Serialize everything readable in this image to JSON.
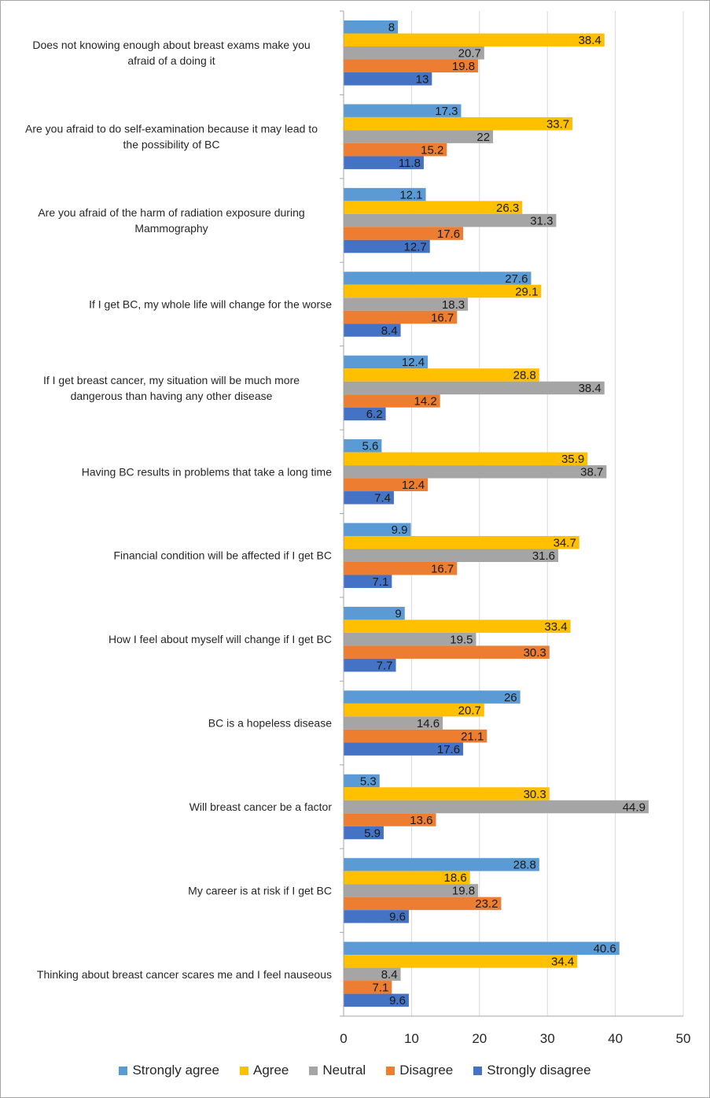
{
  "chart_data": {
    "type": "bar",
    "orientation": "horizontal",
    "categories": [
      "Does not knowing enough about breast exams make you afraid of a doing it",
      "Are you afraid to do self-examination because it may lead to the possibility of BC",
      "Are you afraid of the harm of radiation exposure during Mammography",
      "If I get BC, my whole life will change for the worse",
      "If I get breast cancer, my situation will be much more dangerous than having any other disease",
      "Having BC results in problems that take a long time",
      "Financial condition will be affected if I get BC",
      "How I feel about myself will change if I get BC",
      "BC is a hopeless disease",
      "Will breast cancer be a factor",
      "My career is at risk if I get BC",
      "Thinking about breast cancer scares me and  I feel nauseous"
    ],
    "category_lines": [
      [
        "Does not knowing enough about breast exams make you",
        "afraid of a doing it"
      ],
      [
        "Are you afraid to do self-examination because it may lead to",
        "the possibility of BC"
      ],
      [
        "Are you afraid of the harm of radiation exposure during",
        "Mammography"
      ],
      [
        "If I get BC, my whole life will change for the worse"
      ],
      [
        "If I get breast cancer, my situation will be much more",
        "dangerous than having any other disease"
      ],
      [
        "Having BC results in problems that take a long time"
      ],
      [
        "Financial condition will be affected if I get BC"
      ],
      [
        "How I feel about myself will change if I get BC"
      ],
      [
        "BC is a hopeless disease"
      ],
      [
        "Will breast cancer be a factor"
      ],
      [
        "My career is at risk if I get BC"
      ],
      [
        "Thinking about breast cancer scares me and  I feel nauseous"
      ]
    ],
    "series": [
      {
        "name": "Strongly agree",
        "color": "#5b9bd5",
        "values": [
          8,
          17.3,
          12.1,
          27.6,
          12.4,
          5.6,
          9.9,
          9,
          26,
          5.3,
          28.8,
          40.6
        ]
      },
      {
        "name": "Agree",
        "color": "#ffc000",
        "values": [
          38.4,
          33.7,
          26.3,
          29.1,
          28.8,
          35.9,
          34.7,
          33.4,
          20.7,
          30.3,
          18.6,
          34.4
        ]
      },
      {
        "name": "Neutral",
        "color": "#a5a5a5",
        "values": [
          20.7,
          22,
          31.3,
          18.3,
          38.4,
          38.7,
          31.6,
          19.5,
          14.6,
          44.9,
          19.8,
          8.4
        ]
      },
      {
        "name": "Disagree",
        "color": "#ed7d31",
        "values": [
          19.8,
          15.2,
          17.6,
          16.7,
          14.2,
          12.4,
          16.7,
          30.3,
          21.1,
          13.6,
          23.2,
          7.1
        ]
      },
      {
        "name": "Strongly disagree",
        "color": "#4472c4",
        "values": [
          13,
          11.8,
          12.7,
          8.4,
          6.2,
          7.4,
          7.1,
          7.7,
          17.6,
          5.9,
          9.6,
          9.6
        ]
      }
    ],
    "xlim": [
      0,
      50
    ],
    "xticks": [
      0,
      10,
      20,
      30,
      40,
      50
    ],
    "title": "",
    "xlabel": "",
    "ylabel": "",
    "grid": "vertical",
    "legend": "bottom",
    "data_labels": true
  }
}
